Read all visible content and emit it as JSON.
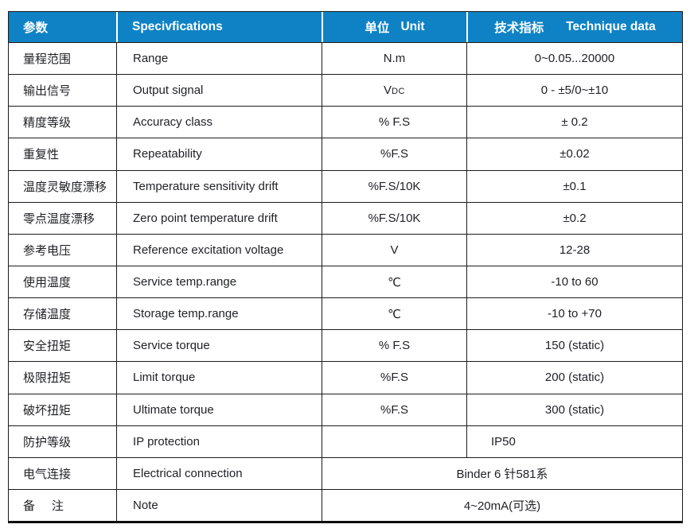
{
  "table": {
    "header": {
      "col1_zh": "参数",
      "col2_en": "Specivfications",
      "col3_zh": "单位",
      "col3_en": "Unit",
      "col4_zh": "技术指标",
      "col4_en": "Technique data"
    },
    "rows": [
      {
        "zh": "量程范围",
        "en": "Range",
        "unit": "N.m",
        "value": "0~0.05...20000"
      },
      {
        "zh": "输出信号",
        "en": "Output signal",
        "unit": "V",
        "unit_sub": "DC",
        "value": "0 - ±5/0~±10"
      },
      {
        "zh": "精度等级",
        "en": "Accuracy class",
        "unit": "% F.S",
        "value": "± 0.2"
      },
      {
        "zh": "重复性",
        "en": "Repeatability",
        "unit": "%F.S",
        "value": "±0.02"
      },
      {
        "zh": "温度灵敏度漂移",
        "en": "Temperature sensitivity drift",
        "unit": "%F.S/10K",
        "value": "±0.1"
      },
      {
        "zh": "零点温度漂移",
        "en": "Zero point temperature drift",
        "unit": "%F.S/10K",
        "value": "±0.2"
      },
      {
        "zh": "参考电压",
        "en": "Reference excitation voltage",
        "unit": "V",
        "value": "12-28"
      },
      {
        "zh": "使用温度",
        "en": "Service temp.range",
        "unit": "℃",
        "value": "-10 to 60"
      },
      {
        "zh": "存储温度",
        "en": "Storage temp.range",
        "unit": "℃",
        "value": "-10 to +70"
      },
      {
        "zh": "安全扭矩",
        "en": "Service torque",
        "unit": "% F.S",
        "value": "150 (static)"
      },
      {
        "zh": "极限扭矩",
        "en": "Limit torque",
        "unit": "%F.S",
        "value": "200 (static)"
      },
      {
        "zh": "破坏扭矩",
        "en": "Ultimate torque",
        "unit": "%F.S",
        "value": "300 (static)"
      },
      {
        "zh": "防护等级",
        "en": "IP protection",
        "unit": "",
        "value": "IP50"
      },
      {
        "zh": "电气连接",
        "en": "Electrical connection",
        "merged_value": "Binder 6 针581系"
      },
      {
        "zh": "备     注",
        "en": "Note",
        "merged_value": "4~20mA(可选)"
      }
    ],
    "colors": {
      "header_bg": "#0e82c5",
      "header_text": "#ffffff",
      "body_text": "#212227",
      "grid_line": "#1b1b1b"
    }
  }
}
